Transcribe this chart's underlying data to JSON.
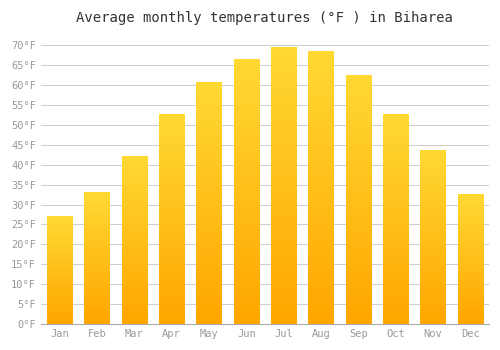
{
  "title": "Average monthly temperatures (°F ) in Biharea",
  "months": [
    "Jan",
    "Feb",
    "Mar",
    "Apr",
    "May",
    "Jun",
    "Jul",
    "Aug",
    "Sep",
    "Oct",
    "Nov",
    "Dec"
  ],
  "values": [
    27,
    33,
    42,
    52.5,
    60.5,
    66.5,
    69.5,
    68.5,
    62.5,
    52.5,
    43.5,
    32.5
  ],
  "bar_color": "#FFAA00",
  "background_color": "#ffffff",
  "grid_color": "#cccccc",
  "text_color": "#999999",
  "ylim": [
    0,
    73
  ],
  "yticks": [
    0,
    5,
    10,
    15,
    20,
    25,
    30,
    35,
    40,
    45,
    50,
    55,
    60,
    65,
    70
  ],
  "tick_label_suffix": "°F",
  "title_fontsize": 10,
  "tick_fontsize": 7.5
}
